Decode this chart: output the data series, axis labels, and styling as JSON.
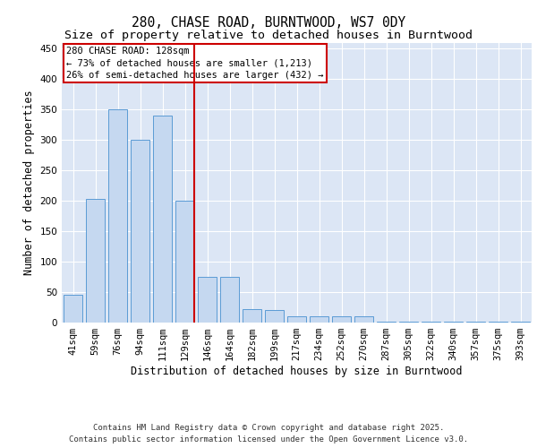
{
  "title_line1": "280, CHASE ROAD, BURNTWOOD, WS7 0DY",
  "title_line2": "Size of property relative to detached houses in Burntwood",
  "xlabel": "Distribution of detached houses by size in Burntwood",
  "ylabel": "Number of detached properties",
  "categories": [
    "41sqm",
    "59sqm",
    "76sqm",
    "94sqm",
    "111sqm",
    "129sqm",
    "146sqm",
    "164sqm",
    "182sqm",
    "199sqm",
    "217sqm",
    "234sqm",
    "252sqm",
    "270sqm",
    "287sqm",
    "305sqm",
    "322sqm",
    "340sqm",
    "357sqm",
    "375sqm",
    "393sqm"
  ],
  "values": [
    45,
    203,
    350,
    300,
    340,
    200,
    75,
    75,
    22,
    20,
    10,
    10,
    10,
    10,
    2,
    2,
    2,
    2,
    2,
    2,
    2
  ],
  "bar_color": "#c5d8f0",
  "bar_edge_color": "#5b9bd5",
  "highlight_index": 5,
  "highlight_line_color": "#cc0000",
  "annotation_text": "280 CHASE ROAD: 128sqm\n← 73% of detached houses are smaller (1,213)\n26% of semi-detached houses are larger (432) →",
  "annotation_box_color": "#cc0000",
  "ylim": [
    0,
    460
  ],
  "yticks": [
    0,
    50,
    100,
    150,
    200,
    250,
    300,
    350,
    400,
    450
  ],
  "background_color": "#dce6f5",
  "grid_color": "#ffffff",
  "footer_text": "Contains HM Land Registry data © Crown copyright and database right 2025.\nContains public sector information licensed under the Open Government Licence v3.0.",
  "title_fontsize": 10.5,
  "subtitle_fontsize": 9.5,
  "axis_label_fontsize": 8.5,
  "tick_fontsize": 7.5,
  "annotation_fontsize": 7.5,
  "footer_fontsize": 6.5
}
